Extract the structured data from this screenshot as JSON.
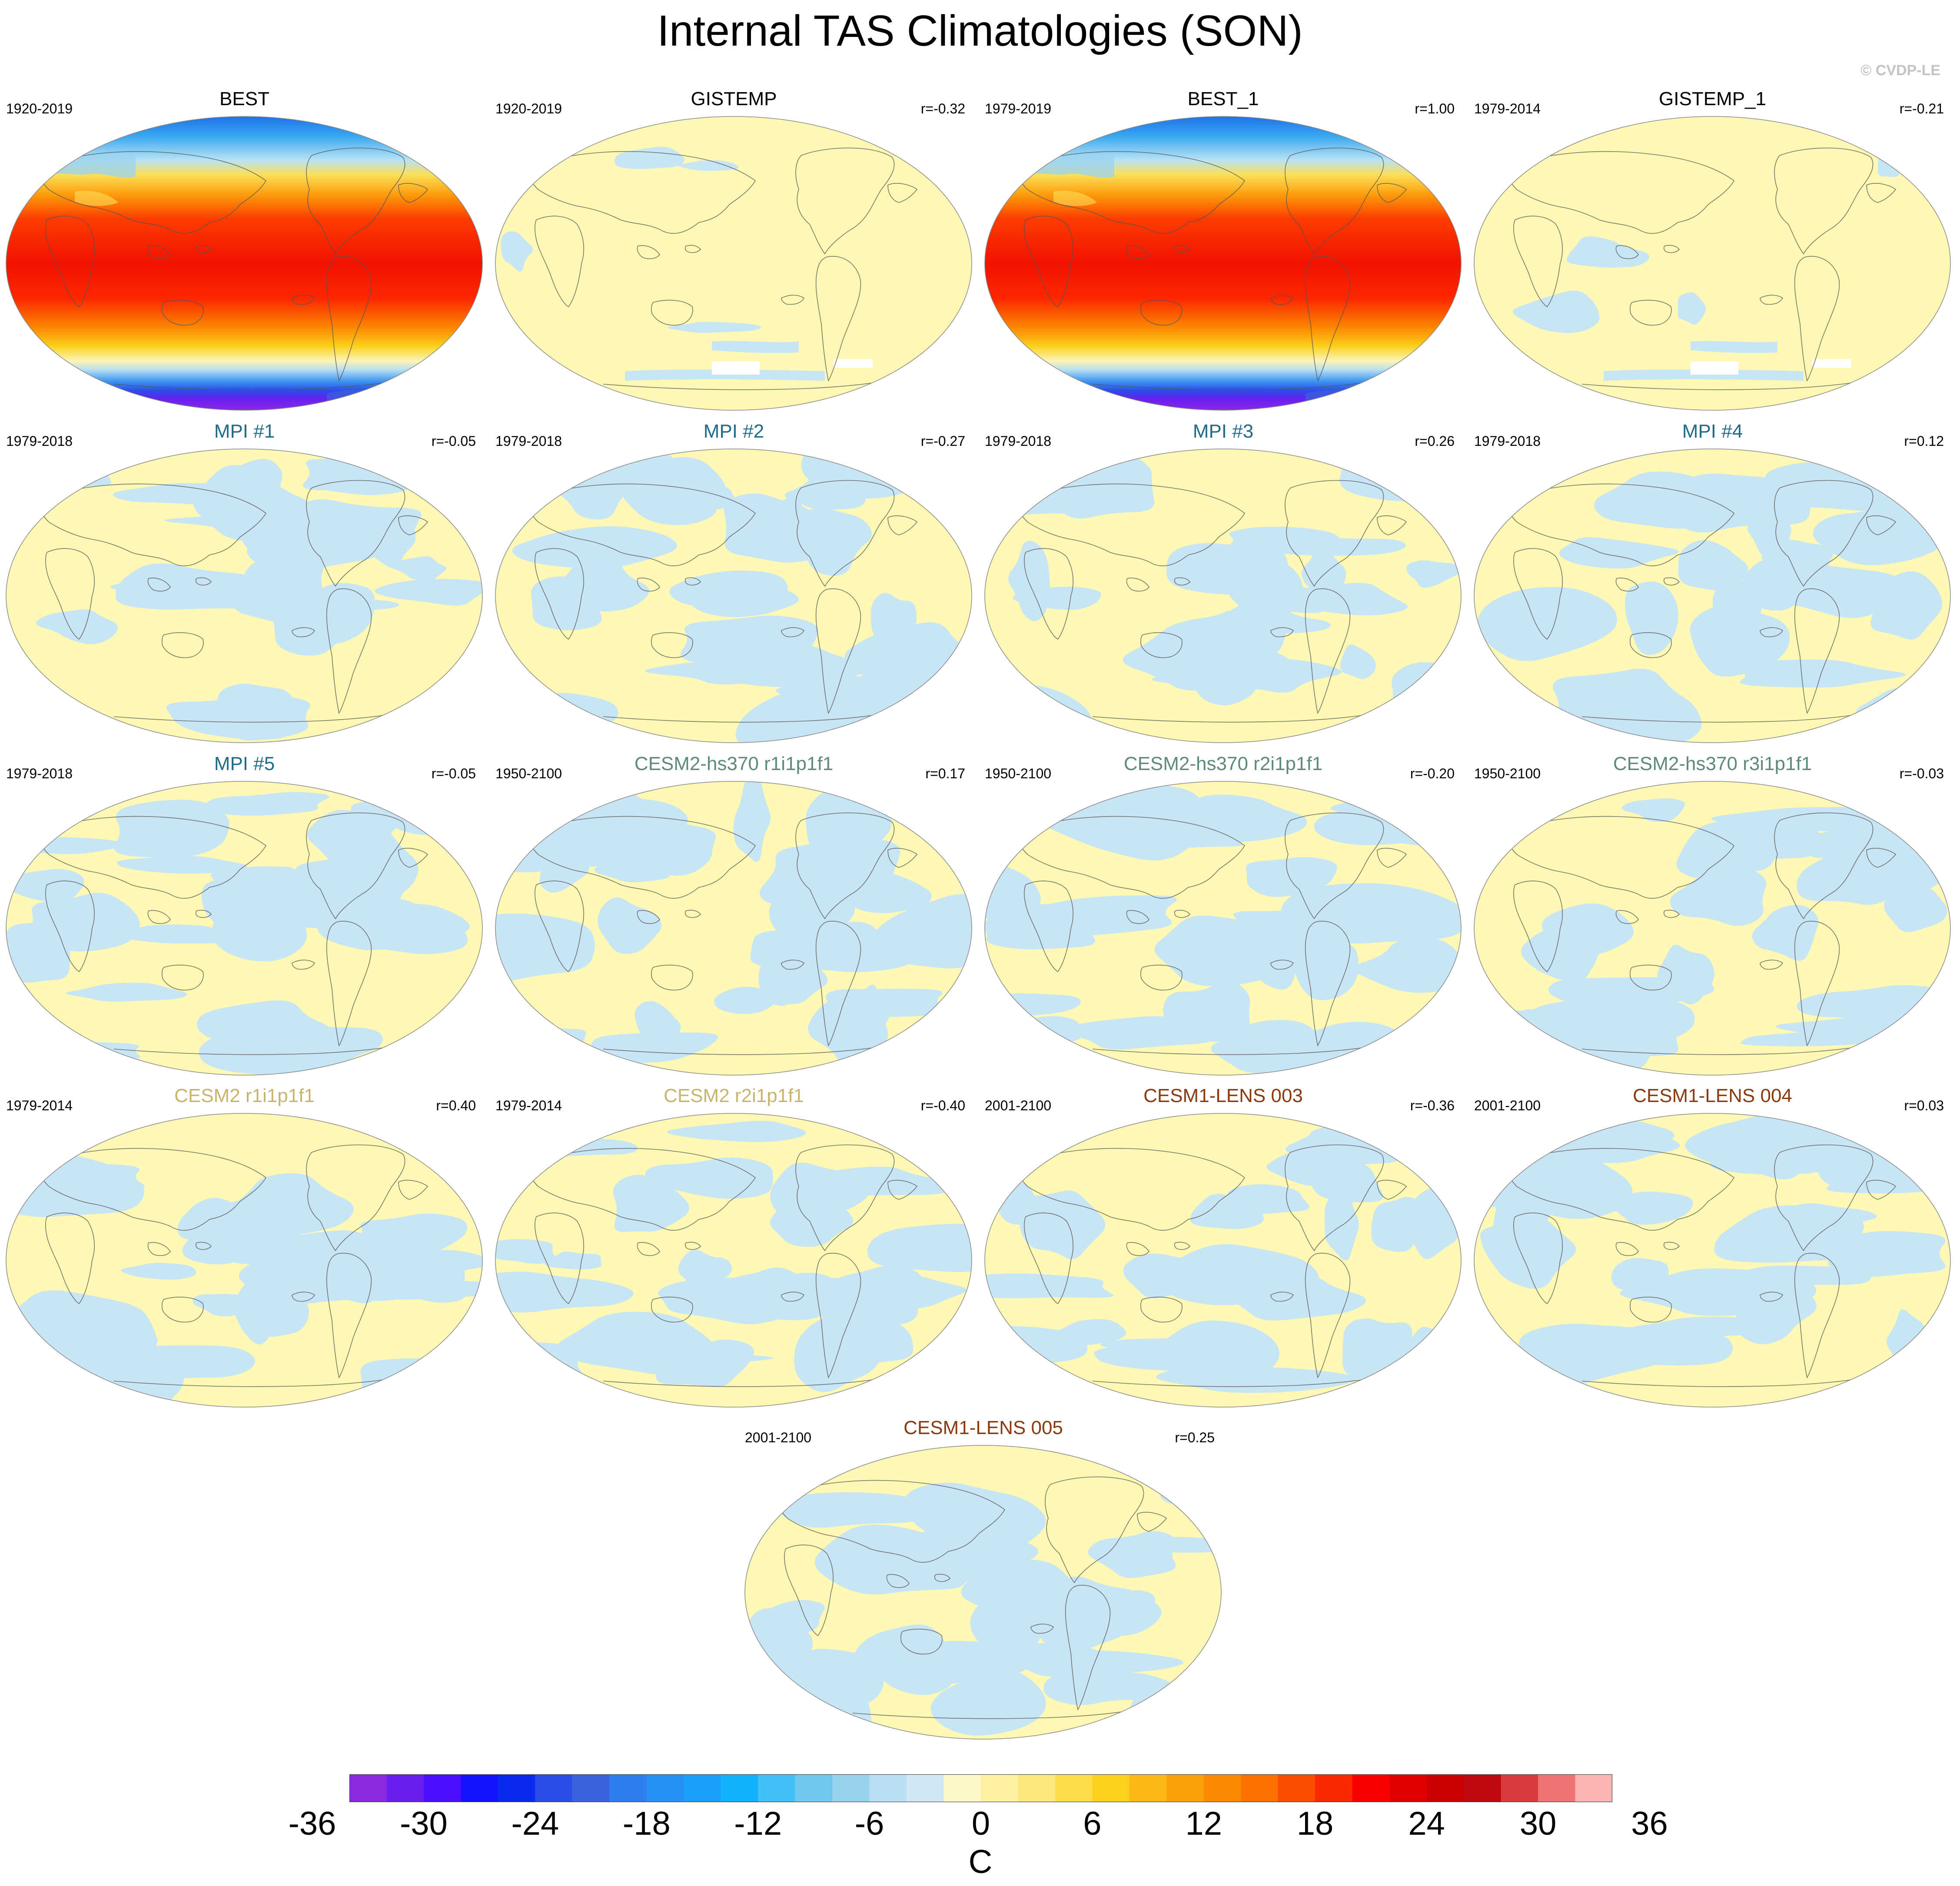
{
  "title": "Internal TAS Climatologies (SON)",
  "credit": "© CVDP-LE",
  "panels": [
    {
      "title": "BEST",
      "years": "1920-2019",
      "corr": "",
      "title_color": "#000000",
      "pattern": "climatology"
    },
    {
      "title": "GISTEMP",
      "years": "1920-2019",
      "corr": "r=-0.32",
      "title_color": "#000000",
      "pattern": "obs-anom"
    },
    {
      "title": "BEST_1",
      "years": "1979-2019",
      "corr": "r=1.00",
      "title_color": "#000000",
      "pattern": "climatology"
    },
    {
      "title": "GISTEMP_1",
      "years": "1979-2014",
      "corr": "r=-0.21",
      "title_color": "#000000",
      "pattern": "obs-anom"
    },
    {
      "title": "MPI #1",
      "years": "1979-2018",
      "corr": "r=-0.05",
      "title_color": "#1f6b8a",
      "pattern": "anom"
    },
    {
      "title": "MPI #2",
      "years": "1979-2018",
      "corr": "r=-0.27",
      "title_color": "#1f6b8a",
      "pattern": "anom"
    },
    {
      "title": "MPI #3",
      "years": "1979-2018",
      "corr": "r=0.26",
      "title_color": "#1f6b8a",
      "pattern": "anom"
    },
    {
      "title": "MPI #4",
      "years": "1979-2018",
      "corr": "r=0.12",
      "title_color": "#1f6b8a",
      "pattern": "anom"
    },
    {
      "title": "MPI #5",
      "years": "1979-2018",
      "corr": "r=-0.05",
      "title_color": "#1f6b8a",
      "pattern": "anom"
    },
    {
      "title": "CESM2-hs370 r1i1p1f1",
      "years": "1950-2100",
      "corr": "r=0.17",
      "title_color": "#5e8a78",
      "pattern": "anom"
    },
    {
      "title": "CESM2-hs370 r2i1p1f1",
      "years": "1950-2100",
      "corr": "r=-0.20",
      "title_color": "#5e8a78",
      "pattern": "anom"
    },
    {
      "title": "CESM2-hs370 r3i1p1f1",
      "years": "1950-2100",
      "corr": "r=-0.03",
      "title_color": "#5e8a78",
      "pattern": "anom"
    },
    {
      "title": "CESM2 r1i1p1f1",
      "years": "1979-2014",
      "corr": "r=0.40",
      "title_color": "#c9b46b",
      "pattern": "anom"
    },
    {
      "title": "CESM2 r2i1p1f1",
      "years": "1979-2014",
      "corr": "r=-0.40",
      "title_color": "#c9b46b",
      "pattern": "anom"
    },
    {
      "title": "CESM1-LENS 003",
      "years": "2001-2100",
      "corr": "r=-0.36",
      "title_color": "#8b3a0e",
      "pattern": "anom"
    },
    {
      "title": "CESM1-LENS 004",
      "years": "2001-2100",
      "corr": "r=0.03",
      "title_color": "#8b3a0e",
      "pattern": "anom"
    },
    {
      "title": "CESM1-LENS 005",
      "years": "2001-2100",
      "corr": "r=0.25",
      "title_color": "#8b3a0e",
      "pattern": "anom"
    }
  ],
  "colorbar": {
    "units": "C",
    "labels": [
      "-36",
      "-30",
      "-24",
      "-18",
      "-12",
      "-6",
      "0",
      "6",
      "12",
      "18",
      "24",
      "30",
      "36"
    ],
    "colors": [
      "#8a2be2",
      "#6a1ef0",
      "#4b10ff",
      "#1414ff",
      "#0a2af0",
      "#2b4de8",
      "#3b63e0",
      "#2e7ef0",
      "#2590f5",
      "#1aa0f8",
      "#10b2fb",
      "#40c0f5",
      "#70c8ee",
      "#98d2ee",
      "#b8dff2",
      "#cfe8f4",
      "#fdf8c8",
      "#fdf0a0",
      "#fce87a",
      "#fcdc4a",
      "#fcd01c",
      "#fcb814",
      "#fca00a",
      "#fc8a00",
      "#fc7000",
      "#fc4c00",
      "#fc2800",
      "#fc0000",
      "#e00000",
      "#cc0000",
      "#c00810",
      "#d83c3c",
      "#ee7474",
      "#fcb4b4"
    ]
  }
}
